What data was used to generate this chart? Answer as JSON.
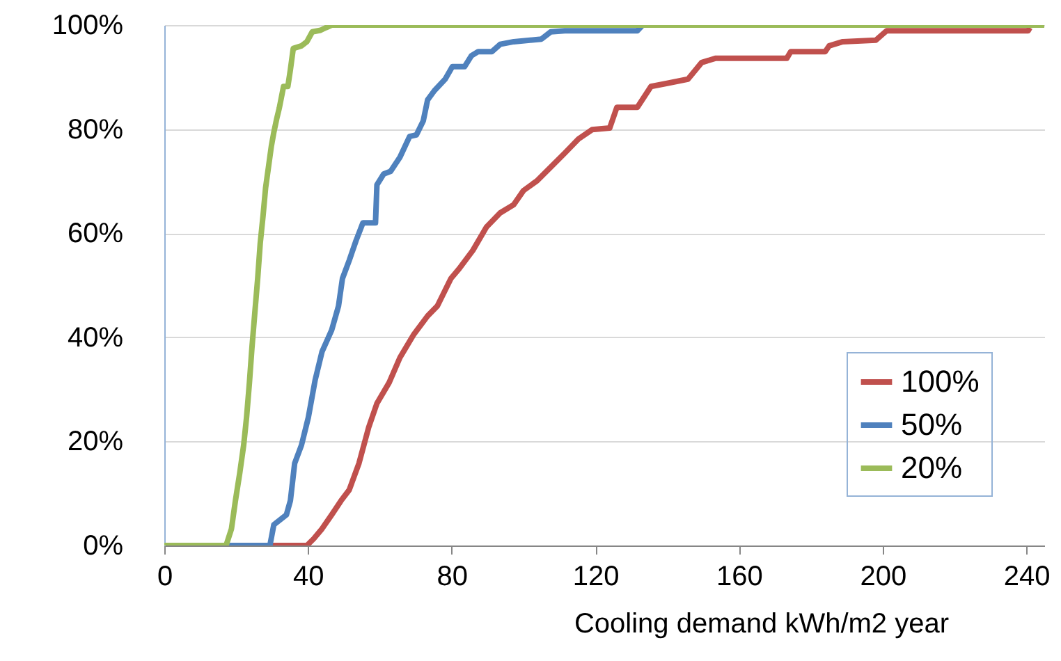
{
  "chart_data": {
    "type": "line",
    "xlabel": "Cooling demand kWh/m2 year",
    "xlim": [
      0,
      245
    ],
    "xticks": [
      0,
      40,
      80,
      120,
      160,
      200,
      240
    ],
    "ylim": [
      0,
      100
    ],
    "yticks": [
      {
        "value": 0,
        "label": "0%"
      },
      {
        "value": 20,
        "label": "20%"
      },
      {
        "value": 40,
        "label": "40%"
      },
      {
        "value": 60,
        "label": "60%"
      },
      {
        "value": 80,
        "label": "80%"
      },
      {
        "value": 100,
        "label": "100%"
      }
    ],
    "grid": "y",
    "legend": "bottom right",
    "marker": "none",
    "line_style": "solid",
    "series": [
      {
        "name": "100%",
        "color": "#c0504d",
        "x": [
          0,
          39.7,
          41.6,
          43.9,
          46.6,
          49.2,
          51.5,
          54.2,
          56.9,
          59.2,
          62.6,
          65.6,
          69.5,
          73.3,
          76,
          79.8,
          82.1,
          85.9,
          89.7,
          93.5,
          97.3,
          100,
          103.8,
          107.6,
          111.5,
          115.3,
          119.1,
          124,
          126,
          131.7,
          135.5,
          140,
          145.8,
          149.6,
          153.4,
          173.3,
          174.4,
          184,
          185.1,
          188.9,
          198.1,
          201.1,
          240.5,
          241
        ],
        "values": [
          0,
          0,
          1.3,
          3.2,
          5.9,
          8.6,
          10.7,
          15.8,
          22.7,
          27.3,
          31.3,
          36.1,
          40.6,
          44.1,
          46,
          51.3,
          53.2,
          56.7,
          61.2,
          63.9,
          65.5,
          68.2,
          70.1,
          72.7,
          75.4,
          78.1,
          79.9,
          80.2,
          84.2,
          84.2,
          88.2,
          88.8,
          89.6,
          92.8,
          93.6,
          93.6,
          94.9,
          94.9,
          96,
          96.8,
          97.1,
          98.9,
          98.9,
          99.5
        ]
      },
      {
        "name": "50%",
        "color": "#4f81bd",
        "x": [
          0,
          29.4,
          30.5,
          34,
          35.1,
          36.3,
          38.2,
          40.1,
          42,
          43.9,
          46.6,
          48.5,
          49.6,
          51.5,
          53.4,
          55.3,
          58.8,
          59.2,
          61.1,
          63,
          65.6,
          68.3,
          70.2,
          72.1,
          73.3,
          75.2,
          78.2,
          80.2,
          83.6,
          85.5,
          87.4,
          91.2,
          93.5,
          97.3,
          105,
          107.6,
          111.5,
          131.7,
          133.2
        ],
        "values": [
          0,
          0,
          4,
          5.9,
          8.6,
          15.8,
          19.3,
          24.6,
          31.8,
          37.2,
          41.4,
          46,
          51.3,
          54.8,
          58.6,
          62,
          62,
          69.3,
          71.4,
          71.9,
          74.6,
          78.6,
          78.9,
          81.6,
          85.6,
          87.4,
          89.6,
          92,
          92,
          94.1,
          94.9,
          94.9,
          96.3,
          96.8,
          97.3,
          98.7,
          98.9,
          98.9,
          100
        ]
      },
      {
        "name": "20%",
        "color": "#9bbb59",
        "x": [
          0,
          17.2,
          18.7,
          19.8,
          21,
          22.1,
          22.9,
          23.7,
          24.4,
          25.2,
          26,
          26.7,
          27.5,
          28.2,
          29,
          29.8,
          30.5,
          31.3,
          32,
          33.2,
          34.4,
          35.1,
          35.9,
          38.2,
          39.7,
          41.2,
          43.5,
          45,
          46.6,
          245
        ],
        "values": [
          0,
          0,
          3.2,
          8.6,
          13.9,
          19.3,
          24.6,
          31.3,
          38,
          44.7,
          51.3,
          58,
          63.4,
          68.7,
          72.7,
          76.7,
          79.4,
          82,
          84,
          88.2,
          88.2,
          91.4,
          95.5,
          96,
          96.8,
          98.7,
          99,
          99.5,
          100,
          100
        ]
      }
    ]
  }
}
